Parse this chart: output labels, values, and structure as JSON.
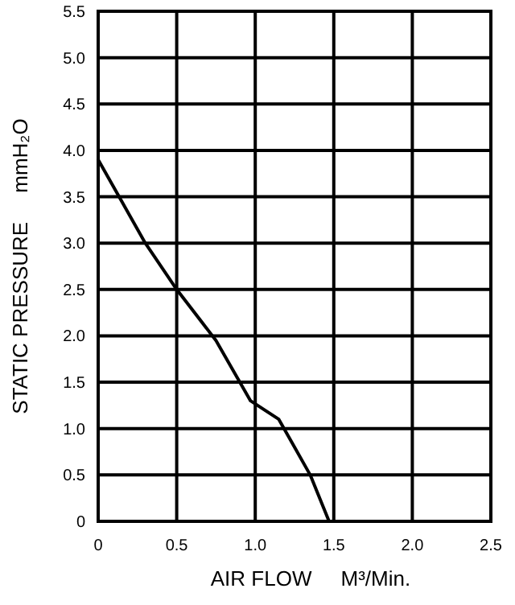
{
  "chart_data": {
    "type": "line",
    "xlabel": "AIR FLOW     M³/Min.",
    "ylabel": "STATIC PRESSURE     mmH₂O",
    "xlim": [
      0,
      2.5
    ],
    "ylim": [
      0,
      5.5
    ],
    "xticks": [
      0,
      0.5,
      {
        "value": 1,
        "label": "1.0"
      },
      1.5,
      {
        "value": 2,
        "label": "2.0"
      },
      2.5
    ],
    "yticks": [
      0,
      0.5,
      {
        "value": 1,
        "label": "1.0"
      },
      1.5,
      {
        "value": 2,
        "label": "2.0"
      },
      2.5,
      {
        "value": 3,
        "label": "3.0"
      },
      3.5,
      {
        "value": 4,
        "label": "4.0"
      },
      4.5,
      {
        "value": 5,
        "label": "5.0"
      },
      5.5
    ],
    "grid": true,
    "marker": "none",
    "line_style": "solid",
    "series": [
      {
        "color": "#000000",
        "x": [
          0,
          0.15,
          0.3,
          0.5,
          0.75,
          0.97,
          1.15,
          1.25,
          1.35,
          1.47
        ],
        "values": [
          3.9,
          3.45,
          3.0,
          2.5,
          1.95,
          1.3,
          1.1,
          0.8,
          0.5,
          0
        ]
      }
    ]
  }
}
